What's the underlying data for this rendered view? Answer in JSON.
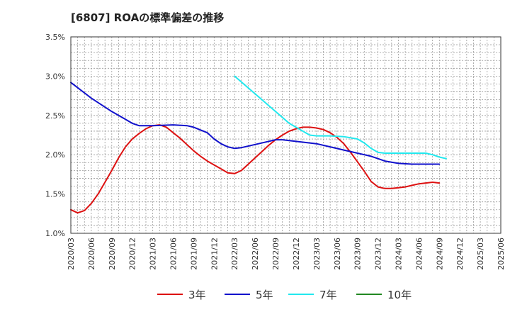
{
  "title": "[6807]  ROAの標準偏差の推移",
  "chart_data": {
    "type": "line",
    "title": "[6807]  ROAの標準偏差の推移",
    "xlabel": "",
    "ylabel": "",
    "ylim": [
      1.0,
      3.5
    ],
    "y_ticks": [
      "1.0%",
      "1.5%",
      "2.0%",
      "2.5%",
      "3.0%",
      "3.5%"
    ],
    "y_tick_values": [
      1.0,
      1.5,
      2.0,
      2.5,
      3.0,
      3.5
    ],
    "x_ticks": [
      "2020/03",
      "2020/06",
      "2020/09",
      "2020/12",
      "2021/03",
      "2021/06",
      "2021/09",
      "2021/12",
      "2022/03",
      "2022/06",
      "2022/09",
      "2022/12",
      "2023/03",
      "2023/06",
      "2023/09",
      "2023/12",
      "2024/03",
      "2024/06",
      "2024/09",
      "2024/12",
      "2025/03",
      "2025/06"
    ],
    "grid": true,
    "legend_position": "bottom",
    "series": [
      {
        "name": "3年",
        "color": "#dd1111",
        "points": [
          [
            0,
            1.3
          ],
          [
            1,
            1.26
          ],
          [
            2,
            1.29
          ],
          [
            3,
            1.38
          ],
          [
            4,
            1.5
          ],
          [
            5,
            1.65
          ],
          [
            6,
            1.8
          ],
          [
            7,
            1.96
          ],
          [
            8,
            2.1
          ],
          [
            9,
            2.2
          ],
          [
            10,
            2.27
          ],
          [
            11,
            2.33
          ],
          [
            12,
            2.37
          ],
          [
            13,
            2.38
          ],
          [
            14,
            2.35
          ],
          [
            15,
            2.28
          ],
          [
            16,
            2.21
          ],
          [
            17,
            2.13
          ],
          [
            18,
            2.05
          ],
          [
            19,
            1.98
          ],
          [
            20,
            1.92
          ],
          [
            21,
            1.87
          ],
          [
            22,
            1.82
          ],
          [
            23,
            1.77
          ],
          [
            24,
            1.76
          ],
          [
            25,
            1.8
          ],
          [
            26,
            1.88
          ],
          [
            27,
            1.96
          ],
          [
            28,
            2.04
          ],
          [
            29,
            2.12
          ],
          [
            30,
            2.19
          ],
          [
            31,
            2.25
          ],
          [
            32,
            2.3
          ],
          [
            33,
            2.33
          ],
          [
            34,
            2.35
          ],
          [
            35,
            2.35
          ],
          [
            36,
            2.34
          ],
          [
            37,
            2.32
          ],
          [
            38,
            2.28
          ],
          [
            39,
            2.22
          ],
          [
            40,
            2.14
          ],
          [
            41,
            2.03
          ],
          [
            42,
            1.91
          ],
          [
            43,
            1.79
          ],
          [
            44,
            1.66
          ],
          [
            45,
            1.59
          ],
          [
            46,
            1.57
          ],
          [
            47,
            1.57
          ],
          [
            48,
            1.58
          ],
          [
            49,
            1.59
          ],
          [
            50,
            1.61
          ],
          [
            51,
            1.63
          ],
          [
            52,
            1.64
          ],
          [
            53,
            1.65
          ],
          [
            54,
            1.64
          ]
        ]
      },
      {
        "name": "5年",
        "color": "#1111cc",
        "points": [
          [
            0,
            2.92
          ],
          [
            3,
            2.72
          ],
          [
            6,
            2.55
          ],
          [
            8,
            2.45
          ],
          [
            9,
            2.4
          ],
          [
            10,
            2.37
          ],
          [
            12,
            2.37
          ],
          [
            15,
            2.38
          ],
          [
            17,
            2.37
          ],
          [
            18,
            2.35
          ],
          [
            20,
            2.28
          ],
          [
            21,
            2.2
          ],
          [
            22,
            2.14
          ],
          [
            23,
            2.1
          ],
          [
            24,
            2.08
          ],
          [
            25,
            2.09
          ],
          [
            27,
            2.13
          ],
          [
            30,
            2.19
          ],
          [
            31,
            2.19
          ],
          [
            32,
            2.18
          ],
          [
            34,
            2.16
          ],
          [
            36,
            2.14
          ],
          [
            38,
            2.1
          ],
          [
            40,
            2.06
          ],
          [
            42,
            2.02
          ],
          [
            44,
            1.98
          ],
          [
            45,
            1.95
          ],
          [
            46,
            1.92
          ],
          [
            48,
            1.89
          ],
          [
            50,
            1.88
          ],
          [
            52,
            1.88
          ],
          [
            54,
            1.88
          ]
        ]
      },
      {
        "name": "7年",
        "color": "#22e8ee",
        "points": [
          [
            24,
            3.0
          ],
          [
            26,
            2.85
          ],
          [
            28,
            2.7
          ],
          [
            30,
            2.55
          ],
          [
            32,
            2.4
          ],
          [
            34,
            2.3
          ],
          [
            35,
            2.25
          ],
          [
            36,
            2.24
          ],
          [
            38,
            2.24
          ],
          [
            40,
            2.23
          ],
          [
            42,
            2.2
          ],
          [
            43,
            2.15
          ],
          [
            44,
            2.08
          ],
          [
            45,
            2.03
          ],
          [
            46,
            2.02
          ],
          [
            48,
            2.02
          ],
          [
            50,
            2.02
          ],
          [
            52,
            2.02
          ],
          [
            53,
            2.0
          ],
          [
            54,
            1.97
          ],
          [
            55,
            1.95
          ]
        ]
      },
      {
        "name": "10年",
        "color": "#228822",
        "points": []
      }
    ]
  }
}
